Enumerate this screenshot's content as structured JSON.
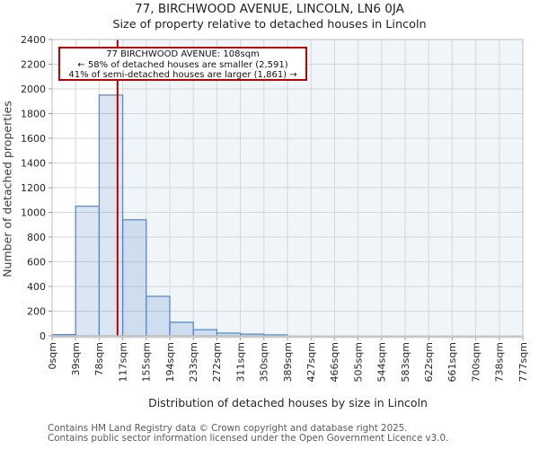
{
  "chart_data": {
    "type": "bar",
    "title": "77, BIRCHWOOD AVENUE, LINCOLN, LN6 0JA",
    "subtitle": "Size of property relative to detached houses in Lincoln",
    "xlabel": "Distribution of detached houses by size in Lincoln",
    "ylabel": "Number of detached properties",
    "categories": [
      "0sqm",
      "39sqm",
      "78sqm",
      "117sqm",
      "155sqm",
      "194sqm",
      "233sqm",
      "272sqm",
      "311sqm",
      "350sqm",
      "389sqm",
      "427sqm",
      "466sqm",
      "505sqm",
      "544sqm",
      "583sqm",
      "622sqm",
      "661sqm",
      "700sqm",
      "738sqm",
      "777sqm"
    ],
    "values": [
      10,
      1050,
      1950,
      940,
      320,
      110,
      50,
      22,
      14,
      8,
      0,
      0,
      0,
      0,
      0,
      0,
      0,
      0,
      0,
      0
    ],
    "ylim": [
      0,
      2400
    ],
    "yticks": [
      0,
      200,
      400,
      600,
      800,
      1000,
      1200,
      1400,
      1600,
      1800,
      2000,
      2200,
      2400
    ],
    "xmax_sqm": 777,
    "grid": true,
    "legend": false,
    "marker_value_sqm": 108,
    "shaded_from_sqm": 117,
    "colors": {
      "bar_fill": "rgba(91,139,201,0.22)",
      "bar_edge": "#5b8bc9",
      "shade_fill": "rgba(91,139,201,0.09)",
      "grid": "#d6d6d6",
      "spine": "#c7c7c7",
      "marker_red": "#b80000",
      "annotation_border": "#c00000"
    }
  },
  "annotation": {
    "line1": "77 BIRCHWOOD AVENUE: 108sqm",
    "line2": "← 58% of detached houses are smaller (2,591)",
    "line3": "41% of semi-detached houses are larger (1,861) →"
  },
  "footer": {
    "line1": "Contains HM Land Registry data © Crown copyright and database right 2025.",
    "line2": "Contains public sector information licensed under the Open Government Licence v3.0."
  }
}
